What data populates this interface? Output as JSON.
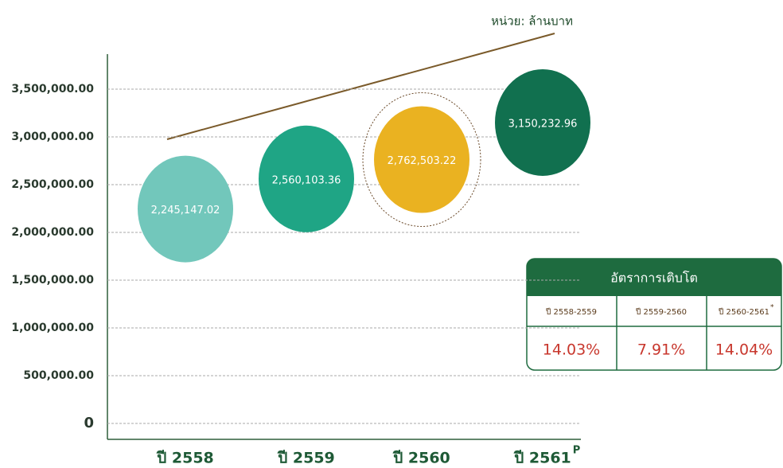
{
  "chart_data": {
    "type": "bubble",
    "unit_label": "หน่วย: ล้านบาท",
    "categories": [
      "ปี 2558",
      "ปี 2559",
      "ปี 2560",
      "ปี 2561"
    ],
    "category_superscripts": [
      null,
      null,
      null,
      "P"
    ],
    "values": [
      2245147.02,
      2560103.36,
      2762503.22,
      3150232.96
    ],
    "value_labels": [
      "2,245,147.02",
      "2,560,103.36",
      "2,762,503.22",
      "3,150,232.96"
    ],
    "colors": [
      "#72c7bb",
      "#1fa585",
      "#eab221",
      "#11704f"
    ],
    "ylim": [
      -150000,
      3850000
    ],
    "yticks": [
      0,
      {
        "value": 500000,
        "label": "500,000.00"
      },
      {
        "value": 1000000,
        "label": "1,000,000.00"
      },
      {
        "value": 1500000,
        "label": "1,500,000.00"
      },
      {
        "value": 2000000,
        "label": "2,000,000.00"
      },
      {
        "value": 2500000,
        "label": "2,500,000.00"
      },
      {
        "value": 3000000,
        "label": "3,000,000.00"
      },
      {
        "value": 3500000,
        "label": "3,500,000.00"
      }
    ],
    "grid": true,
    "growth_table": {
      "title": "อัตราการเติบโต",
      "headers": [
        "ปี 2558-2559",
        "ปี 2559-2560",
        "ปี 2560-2561"
      ],
      "header_superscripts": [
        null,
        null,
        "*"
      ],
      "values": [
        14.03,
        7.91,
        14.04
      ],
      "value_labels": [
        "14.03%",
        "7.91%",
        "14.04%"
      ]
    }
  }
}
